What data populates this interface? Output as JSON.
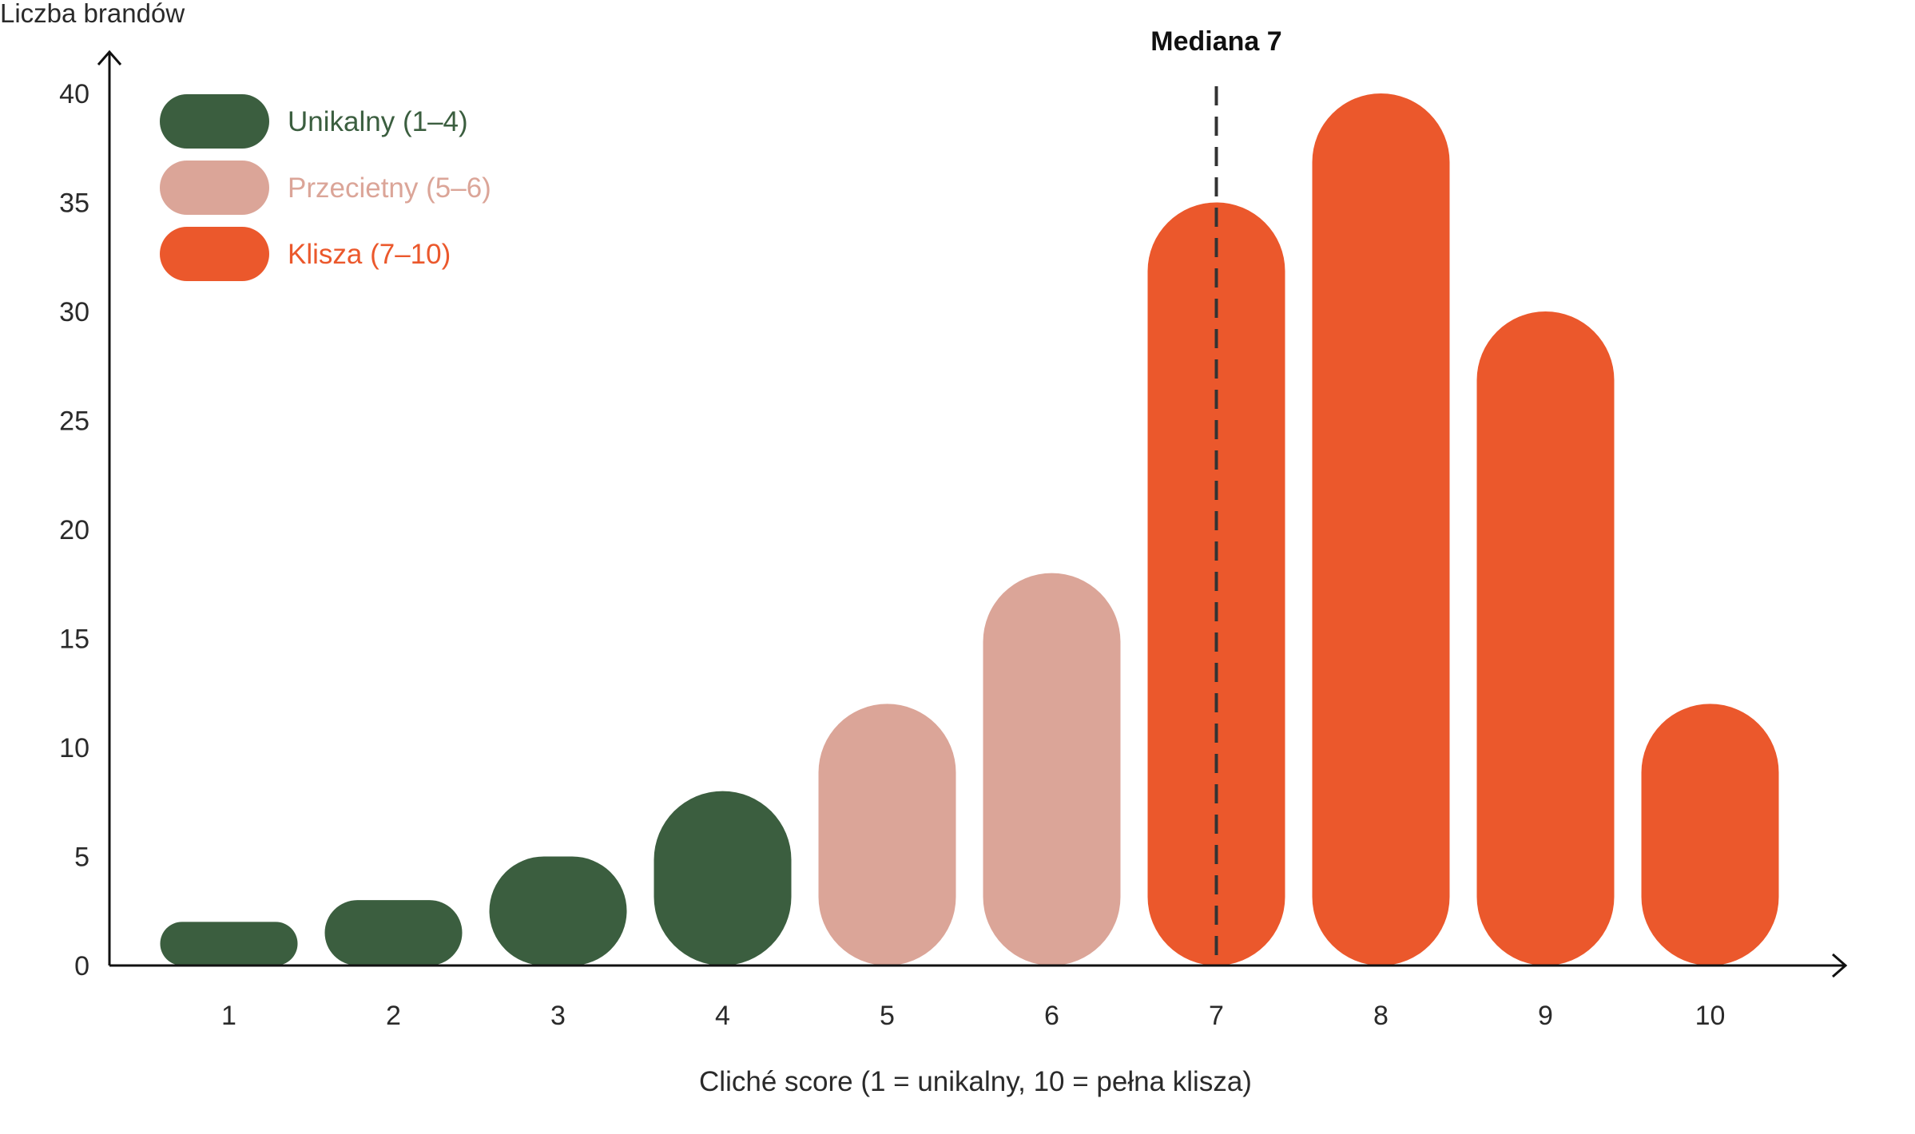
{
  "chart_data": {
    "type": "bar",
    "title": "",
    "xlabel": "Cliché score (1 = unikalny, 10 = pełna klisza)",
    "ylabel": "Liczba brandów",
    "categories": [
      "1",
      "2",
      "3",
      "4",
      "5",
      "6",
      "7",
      "8",
      "9",
      "10"
    ],
    "values": [
      2,
      3,
      5,
      8,
      12,
      18,
      35,
      40,
      30,
      12
    ],
    "groups": [
      "unikalny",
      "unikalny",
      "unikalny",
      "unikalny",
      "przecietny",
      "przecietny",
      "klisza",
      "klisza",
      "klisza",
      "klisza"
    ],
    "ylim": [
      0,
      40
    ],
    "yticks": [
      "0",
      "5",
      "10",
      "15",
      "20",
      "25",
      "30",
      "35",
      "40"
    ],
    "grid": false,
    "legend_position": "top-left",
    "legend": [
      {
        "key": "unikalny",
        "label": "Unikalny (1–4)",
        "color": "#3b5e3f"
      },
      {
        "key": "przecietny",
        "label": "Przecietny (5–6)",
        "color": "#dba598"
      },
      {
        "key": "klisza",
        "label": "Klisza (7–10)",
        "color": "#eb582c"
      }
    ],
    "median": {
      "value": 7,
      "label": "Mediana 7"
    }
  }
}
